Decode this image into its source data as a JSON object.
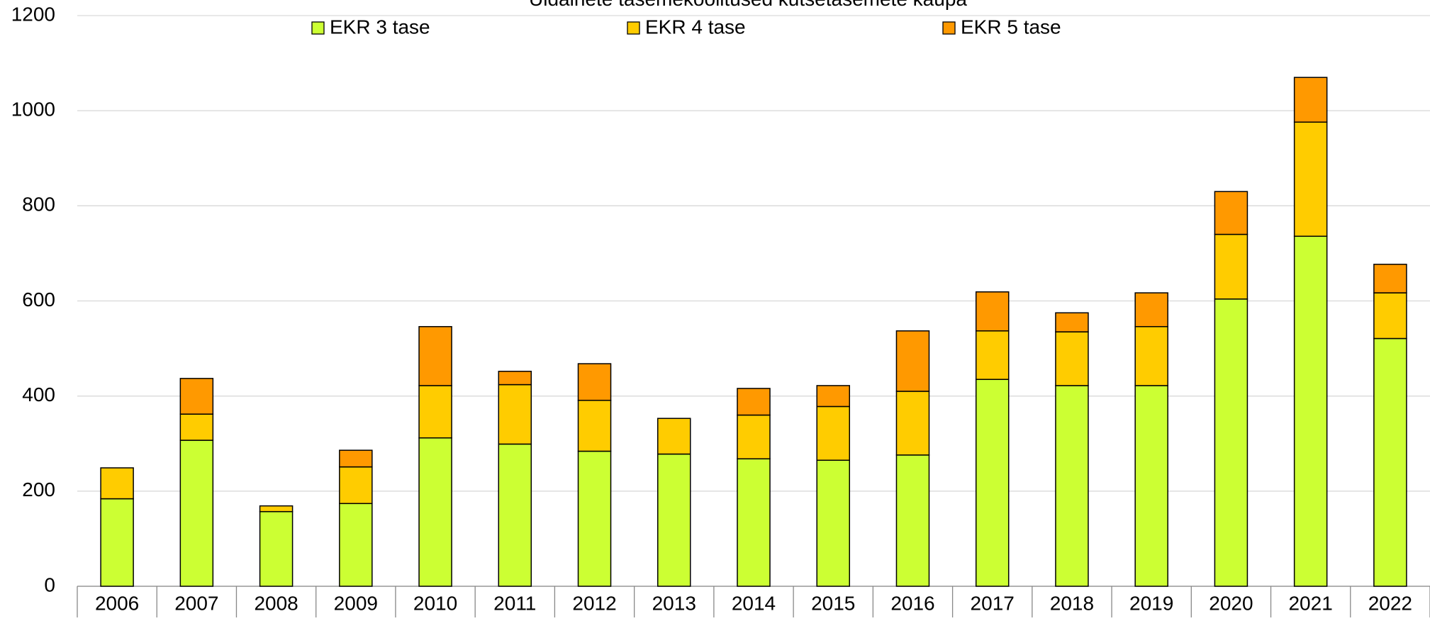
{
  "chart_data": {
    "type": "stacked_bar",
    "title": "Üldainete tasemekoolitused kutsetasemete kaupa",
    "categories": [
      "2006",
      "2007",
      "2008",
      "2009",
      "2010",
      "2011",
      "2012",
      "2013",
      "2014",
      "2015",
      "2016",
      "2017",
      "2018",
      "2019",
      "2020",
      "2021",
      "2022"
    ],
    "series": [
      {
        "name": "EKR 3 tase",
        "color": "#ccff33",
        "values": [
          184,
          307,
          157,
          174,
          312,
          299,
          284,
          278,
          268,
          265,
          276,
          435,
          422,
          422,
          604,
          736,
          521
        ]
      },
      {
        "name": "EKR 4 tase",
        "color": "#ffcc00",
        "values": [
          65,
          55,
          12,
          77,
          110,
          125,
          107,
          75,
          92,
          113,
          134,
          102,
          113,
          124,
          136,
          240,
          96
        ]
      },
      {
        "name": "EKR 5 tase",
        "color": "#ff9900",
        "values": [
          0,
          75,
          0,
          35,
          124,
          28,
          77,
          0,
          56,
          44,
          127,
          82,
          40,
          71,
          90,
          94,
          60
        ]
      }
    ],
    "ylim": [
      0,
      1200
    ],
    "yticks": [
      0,
      200,
      400,
      600,
      800,
      1000,
      1200
    ],
    "grid": true,
    "legend": "top"
  }
}
